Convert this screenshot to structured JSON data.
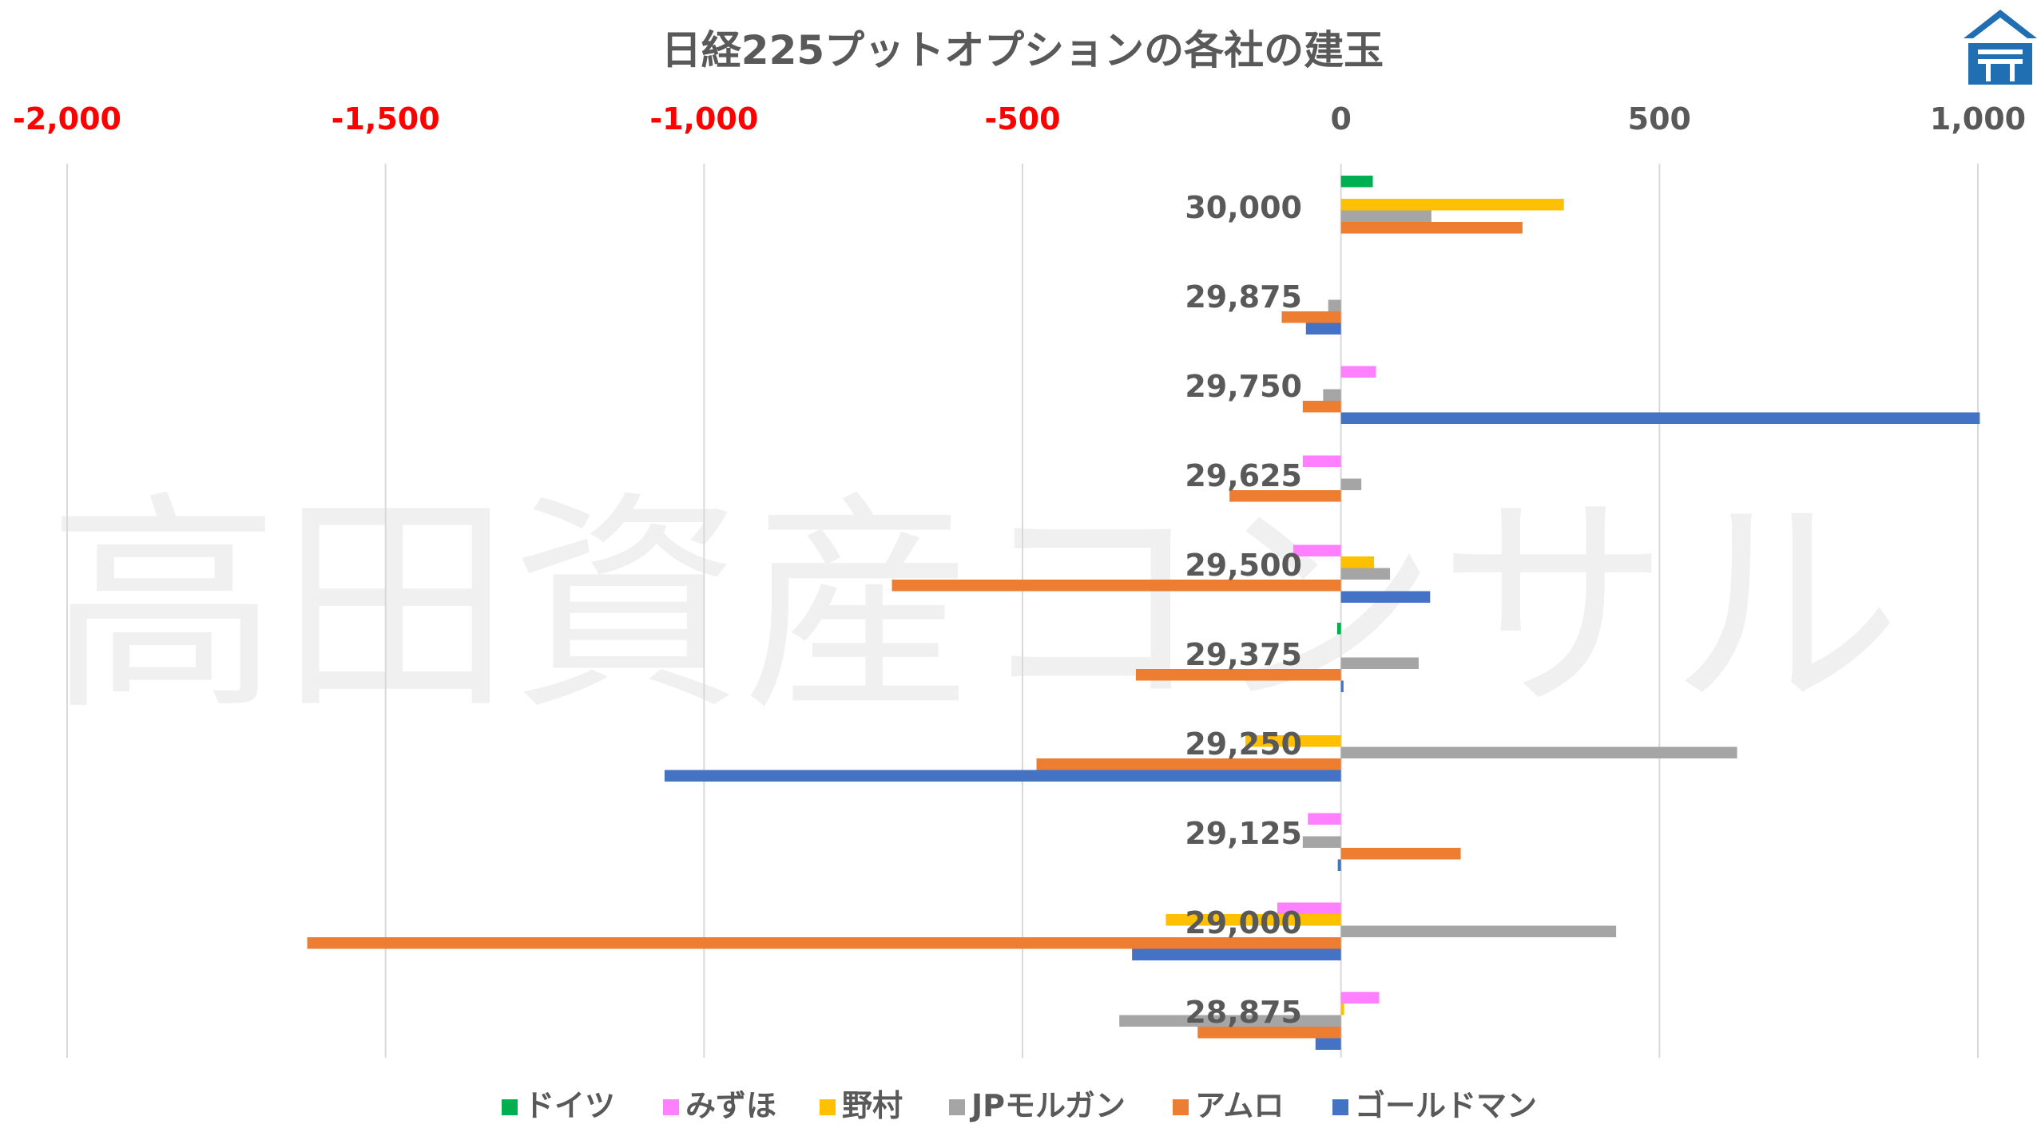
{
  "chart_data": {
    "type": "bar",
    "orientation": "horizontal",
    "title": "日経225プットオプションの各社の建玉",
    "watermark": "高田資産コンサル",
    "xlim": [
      -2000,
      1000
    ],
    "xticks": [
      -2000,
      -1500,
      -1000,
      -500,
      0,
      500,
      1000
    ],
    "xtick_labels": [
      "-2,000",
      "-1,500",
      "-1,000",
      "-500",
      "0",
      "500",
      "1,000"
    ],
    "xtick_negative_color": "#ff0000",
    "xtick_positive_color": "#595959",
    "xaxis_position": "top",
    "grid": true,
    "legend_position": "bottom",
    "categories": [
      "30,000",
      "29,875",
      "29,750",
      "29,625",
      "29,500",
      "29,375",
      "29,250",
      "29,125",
      "29,000",
      "28,875"
    ],
    "series": [
      {
        "name": "ドイツ",
        "color": "#00b050",
        "values": [
          50,
          0,
          0,
          0,
          0,
          -6,
          0,
          0,
          0,
          0
        ]
      },
      {
        "name": "みずほ",
        "color": "#ff80ff",
        "values": [
          0,
          0,
          55,
          -60,
          -75,
          0,
          0,
          -52,
          -100,
          60
        ]
      },
      {
        "name": "野村",
        "color": "#ffc000",
        "values": [
          350,
          0,
          0,
          0,
          52,
          0,
          -150,
          0,
          -275,
          5
        ]
      },
      {
        "name": "JPモルガン",
        "color": "#a5a5a5",
        "values": [
          142,
          -20,
          -28,
          32,
          77,
          122,
          622,
          -60,
          432,
          -348
        ]
      },
      {
        "name": "アムロ",
        "color": "#ed7d31",
        "values": [
          285,
          -93,
          -60,
          -175,
          -705,
          -322,
          -478,
          188,
          -1623,
          -225
        ]
      },
      {
        "name": "ゴールドマン",
        "color": "#4472c4",
        "values": [
          0,
          -55,
          1003,
          0,
          140,
          4,
          -1062,
          -5,
          -328,
          -40
        ]
      }
    ]
  },
  "logo": {
    "name": "company-logo",
    "color": "#1f6fb2"
  }
}
